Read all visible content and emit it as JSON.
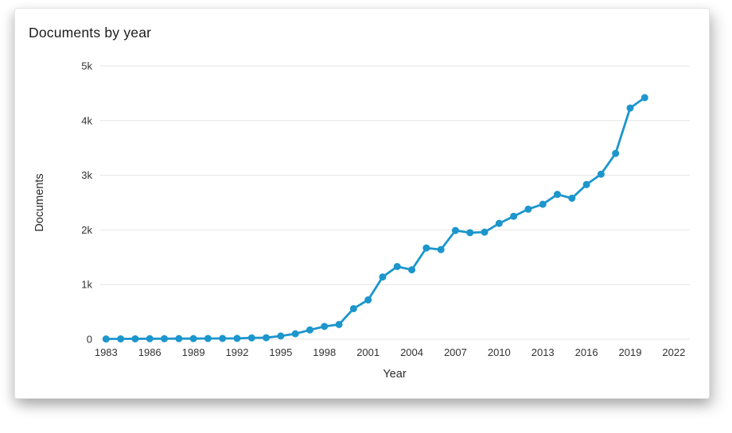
{
  "card": {
    "title": "Documents by year"
  },
  "chart_data": {
    "type": "line",
    "title": "Documents by year",
    "xlabel": "Year",
    "ylabel": "Documents",
    "x": [
      1983,
      1984,
      1985,
      1986,
      1987,
      1988,
      1989,
      1990,
      1991,
      1992,
      1993,
      1994,
      1995,
      1996,
      1997,
      1998,
      1999,
      2000,
      2001,
      2002,
      2003,
      2004,
      2005,
      2006,
      2007,
      2008,
      2009,
      2010,
      2011,
      2012,
      2013,
      2014,
      2015,
      2016,
      2017,
      2018,
      2019,
      2020
    ],
    "values": [
      5,
      7,
      8,
      10,
      10,
      12,
      12,
      14,
      15,
      16,
      25,
      28,
      60,
      100,
      170,
      235,
      270,
      560,
      720,
      1140,
      1330,
      1270,
      1670,
      1640,
      1990,
      1950,
      1960,
      2120,
      2250,
      2380,
      2470,
      2650,
      2580,
      2830,
      3020,
      3400,
      4230,
      4420
    ],
    "series_name": "Documents",
    "x_ticks": [
      1983,
      1986,
      1989,
      1992,
      1995,
      1998,
      2001,
      2004,
      2007,
      2010,
      2013,
      2016,
      2019,
      2022
    ],
    "y_ticks": [
      {
        "value": 0,
        "label": "0"
      },
      {
        "value": 1000,
        "label": "1k"
      },
      {
        "value": 2000,
        "label": "2k"
      },
      {
        "value": 3000,
        "label": "3k"
      },
      {
        "value": 4000,
        "label": "4k"
      },
      {
        "value": 5000,
        "label": "5k"
      }
    ],
    "xlim": [
      1982.6,
      2023.1
    ],
    "ylim": [
      0,
      5000
    ],
    "grid": "horizontal",
    "legend": "none",
    "line_color": "#1c96cc",
    "grid_color": "#e4e4e4",
    "text_color": "#333333",
    "line_width": 2.8,
    "marker_radius": 4.5
  }
}
